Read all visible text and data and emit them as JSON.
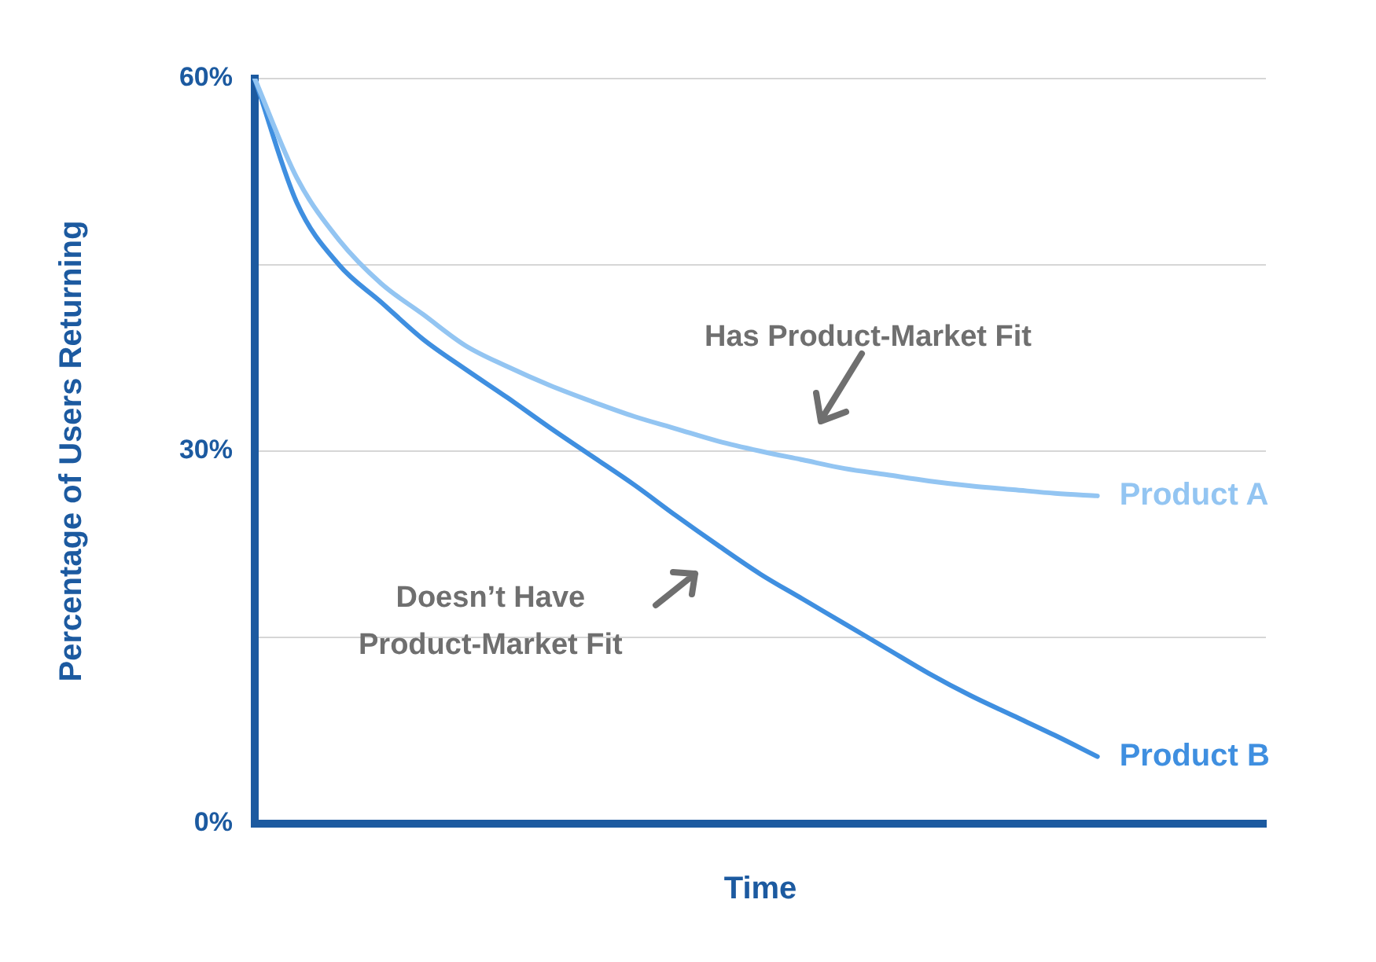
{
  "chart_data": {
    "type": "line",
    "xlabel": "Time",
    "ylabel": "Percentage of Users Returning",
    "categories": [
      null,
      null,
      null,
      null,
      null,
      null,
      null,
      null,
      null,
      null,
      null,
      null,
      null,
      null,
      null,
      null,
      null,
      null,
      null,
      null,
      null,
      null,
      null,
      null,
      null
    ],
    "series": [
      {
        "name": "Product A",
        "color": "#93c5f2",
        "values": [
          60,
          52,
          47,
          43.5,
          41,
          38.5,
          36.8,
          35.3,
          34,
          32.8,
          31.8,
          30.8,
          30,
          29.3,
          28.6,
          28.1,
          27.6,
          27.2,
          26.9,
          26.6,
          26.4,
          null,
          null,
          null,
          null
        ]
      },
      {
        "name": "Product B",
        "color": "#3f8fe0",
        "values": [
          60,
          50,
          45,
          42,
          39,
          36.6,
          34.3,
          31.9,
          29.6,
          27.3,
          24.8,
          22.4,
          20.1,
          18.1,
          16.1,
          14.1,
          12.1,
          10.3,
          8.7,
          7.1,
          5.4,
          null,
          null,
          null,
          null
        ]
      }
    ],
    "ylim": [
      0,
      60
    ],
    "yticks": [
      {
        "value": 0,
        "label": "0%"
      },
      {
        "value": 15,
        "label": null
      },
      {
        "value": 30,
        "label": "30%"
      },
      {
        "value": 45,
        "label": null
      },
      {
        "value": 60,
        "label": "60%"
      }
    ],
    "grid": "y",
    "marker": "none",
    "line_style": "solid",
    "tick_labels": "y",
    "annotations": [
      "Has Product-Market Fit",
      "Doesn’t Have\nProduct-Market Fit"
    ]
  }
}
